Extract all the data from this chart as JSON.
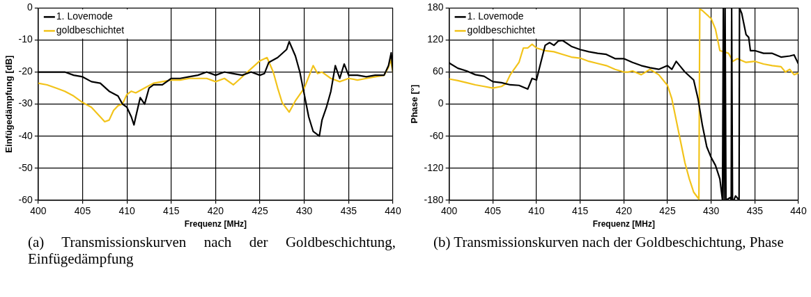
{
  "chart_data": [
    {
      "type": "line",
      "xlabel": "Frequenz [MHz]",
      "ylabel": "Einfügedämpfung [dB]",
      "xlim": [
        400,
        440
      ],
      "xticks": [
        400,
        405,
        410,
        415,
        420,
        425,
        430,
        435,
        440
      ],
      "ylim": [
        -60,
        0
      ],
      "yticks": [
        -60,
        -50,
        -40,
        -30,
        -20,
        -10,
        0
      ],
      "grid": true,
      "legend": "top left",
      "marker": "none",
      "line_style": "solid",
      "annotations": [
        "(a) Transmissionskurven nach der Goldbeschichtung, Einfügedämpfung"
      ],
      "series": [
        {
          "name": "1. Lovemode",
          "color": "#000000",
          "x": [
            400,
            402,
            403,
            404,
            405,
            406,
            407,
            408,
            409,
            409.5,
            410,
            410.5,
            410.8,
            411,
            411.5,
            412,
            412.5,
            413,
            414,
            415,
            416,
            417,
            418,
            419,
            420,
            421,
            422,
            423,
            424,
            425,
            425.5,
            426,
            427,
            428,
            428.3,
            429,
            429.5,
            430,
            430.5,
            431,
            431.7,
            432,
            432.5,
            433,
            433.5,
            434,
            434.5,
            435,
            436,
            437,
            438,
            439,
            439.5,
            439.8,
            440
          ],
          "values": [
            -20,
            -20,
            -20,
            -21,
            -21.5,
            -23,
            -23.5,
            -26,
            -27.5,
            -30,
            -31,
            -34,
            -36.5,
            -34,
            -28,
            -30,
            -25,
            -24,
            -24,
            -22,
            -22,
            -21.5,
            -21,
            -20,
            -21,
            -20,
            -20.5,
            -21,
            -20,
            -21,
            -20.5,
            -17,
            -15.5,
            -13,
            -10.5,
            -15,
            -20,
            -27,
            -34,
            -38.5,
            -40,
            -35,
            -31,
            -26,
            -18,
            -22,
            -17.5,
            -21,
            -21,
            -21.5,
            -21,
            -21,
            -18,
            -14,
            -20
          ]
        },
        {
          "name": "goldbeschichtet",
          "color": "#f2c31a",
          "x": [
            400,
            401,
            402,
            403,
            404,
            405,
            406,
            407,
            407.5,
            408,
            408.5,
            409,
            409.5,
            410,
            410.5,
            411,
            412,
            413,
            414,
            415,
            416,
            417,
            418,
            419,
            420,
            421,
            422,
            423,
            424,
            425,
            425.8,
            426.5,
            427,
            427.5,
            428.3,
            429,
            430,
            431,
            431.5,
            432,
            433,
            434,
            435,
            436,
            437,
            438,
            439,
            439.5,
            439.7,
            440
          ],
          "values": [
            -23.5,
            -24,
            -25,
            -26,
            -27.5,
            -29.5,
            -31,
            -34,
            -35.5,
            -35,
            -32,
            -30.5,
            -30,
            -27,
            -26,
            -26.5,
            -25,
            -23.5,
            -23,
            -22.5,
            -22.5,
            -22,
            -22,
            -22,
            -23,
            -22,
            -24,
            -21.5,
            -19,
            -16.5,
            -15.5,
            -20,
            -25,
            -29.5,
            -32.5,
            -29,
            -25,
            -18,
            -20.5,
            -20,
            -22,
            -23,
            -22,
            -22.5,
            -22,
            -21.5,
            -21,
            -18.5,
            -16,
            -20
          ]
        }
      ]
    },
    {
      "type": "line",
      "xlabel": "Frequenz [MHz]",
      "ylabel": "Phase [°]",
      "xlim": [
        400,
        440
      ],
      "xticks": [
        400,
        405,
        410,
        415,
        420,
        425,
        430,
        435,
        440
      ],
      "ylim": [
        -180,
        180
      ],
      "yticks": [
        -180,
        -120,
        -60,
        0,
        60,
        120,
        180
      ],
      "grid": true,
      "legend": "top left",
      "marker": "none",
      "line_style": "solid",
      "annotations": [
        "(b) Transmissionskurven nach der Goldbeschichtung, Phase"
      ],
      "series": [
        {
          "name": "1. Lovemode",
          "color": "#000000",
          "x": [
            400,
            401,
            402,
            403,
            404,
            405,
            406,
            407,
            408,
            409,
            409.5,
            410,
            410.5,
            411,
            411.5,
            412,
            412.5,
            413,
            414,
            415,
            416,
            417,
            418,
            419,
            420,
            421,
            422,
            423,
            424,
            425,
            425.5,
            426,
            426.5,
            427,
            428,
            428.5,
            429,
            429.5,
            430,
            430.5,
            431,
            431.3,
            431.4,
            431.5,
            431.6,
            431.7,
            432.2,
            432.3,
            432.35,
            432.45,
            432.6,
            432.8,
            433.2,
            433.25,
            433.5,
            434,
            434.3,
            434.5,
            435,
            436,
            437,
            438,
            439,
            439.5,
            440
          ],
          "values": [
            77,
            67,
            62,
            55,
            52,
            42,
            40,
            36,
            35,
            28,
            48,
            45,
            78,
            110,
            115,
            110,
            118,
            119,
            108,
            102,
            98,
            95,
            93,
            85,
            85,
            78,
            72,
            68,
            65,
            72,
            65,
            80,
            70,
            60,
            45,
            10,
            -40,
            -80,
            -100,
            -115,
            -140,
            -180,
            180,
            -180,
            180,
            -180,
            -175,
            -180,
            180,
            -180,
            -180,
            -172,
            -180,
            180,
            170,
            130,
            125,
            100,
            100,
            95,
            95,
            88,
            90,
            92,
            75
          ]
        },
        {
          "name": "goldbeschichtet",
          "color": "#f2c31a",
          "x": [
            400,
            401,
            402,
            403,
            404,
            405,
            406,
            406.5,
            407,
            408,
            408.5,
            409,
            409.5,
            410,
            411,
            412,
            413,
            414,
            415,
            416,
            417,
            418,
            419,
            420,
            420.5,
            421,
            422,
            423,
            424,
            425,
            425.5,
            426,
            426.5,
            427,
            427.5,
            428,
            428.6,
            428.7,
            429,
            430,
            430.5,
            431,
            432,
            432.5,
            433,
            434,
            435,
            436,
            437,
            438,
            438.5,
            439,
            439.5,
            440
          ],
          "values": [
            47,
            44,
            40,
            36,
            33,
            30,
            33,
            38,
            55,
            78,
            105,
            105,
            112,
            105,
            100,
            98,
            93,
            88,
            86,
            80,
            76,
            72,
            65,
            60,
            60,
            62,
            55,
            65,
            55,
            35,
            10,
            -30,
            -70,
            -110,
            -140,
            -165,
            -178,
            178,
            175,
            160,
            140,
            100,
            95,
            80,
            85,
            78,
            80,
            75,
            72,
            70,
            60,
            65,
            55,
            58
          ]
        }
      ]
    }
  ]
}
